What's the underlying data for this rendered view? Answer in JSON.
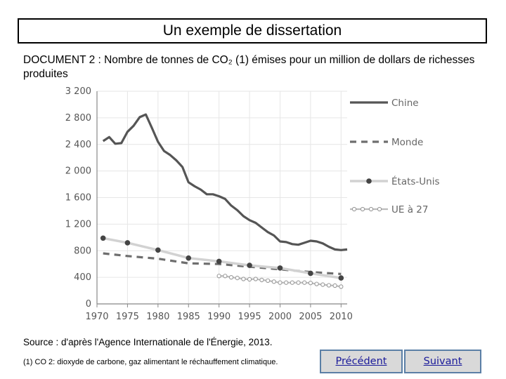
{
  "page": {
    "title": "Un exemple de dissertation",
    "document_title": "DOCUMENT 2 : Nombre de tonnes de CO₂ (1) émises pour un million de dollars de richesses produites",
    "source": "Source : d'après l'Agence Internationale de l'Énergie, 2013.",
    "footnote": "(1) CO 2: dioxyde de carbone, gaz alimentant le réchauffement climatique.",
    "prev_label": "Précédent",
    "next_label": "Suivant"
  },
  "chart_data": {
    "type": "line",
    "xlim": [
      1970,
      2011
    ],
    "ylim": [
      0,
      3200
    ],
    "x_ticks": [
      "1970",
      "1975",
      "1980",
      "1985",
      "1990",
      "1995",
      "2000",
      "2005",
      "2010"
    ],
    "y_ticks": [
      "0",
      "400",
      "800",
      "1 200",
      "1 600",
      "2 000",
      "2 400",
      "2 800",
      "3 200"
    ],
    "grid": true,
    "legend_position": "right",
    "colors": {
      "chine": "#555555",
      "monde": "#6e6e6e",
      "etats_unis": "#d2d2d2",
      "etats_unis_marker": "#444444",
      "ue": "#bcbcbc",
      "grid": "#e6e6e6",
      "axis": "#888888"
    },
    "series": [
      {
        "name": "Chine",
        "style": "solid",
        "x": [
          1971,
          1972,
          1973,
          1974,
          1975,
          1976,
          1977,
          1978,
          1979,
          1980,
          1981,
          1982,
          1983,
          1984,
          1985,
          1986,
          1987,
          1988,
          1989,
          1990,
          1991,
          1992,
          1993,
          1994,
          1995,
          1996,
          1997,
          1998,
          1999,
          2000,
          2001,
          2002,
          2003,
          2004,
          2005,
          2006,
          2007,
          2008,
          2009,
          2010,
          2011
        ],
        "values": [
          2450,
          2510,
          2410,
          2420,
          2590,
          2680,
          2810,
          2850,
          2650,
          2440,
          2300,
          2240,
          2160,
          2060,
          1830,
          1770,
          1720,
          1650,
          1650,
          1620,
          1580,
          1480,
          1410,
          1320,
          1260,
          1220,
          1150,
          1080,
          1030,
          940,
          930,
          900,
          890,
          920,
          950,
          940,
          910,
          860,
          820,
          810,
          820
        ]
      },
      {
        "name": "Monde",
        "style": "dashed",
        "x": [
          1971,
          1975,
          1980,
          1985,
          1990,
          1995,
          2000,
          2005,
          2010
        ],
        "values": [
          760,
          720,
          680,
          610,
          600,
          560,
          520,
          480,
          450
        ]
      },
      {
        "name": "États-Unis",
        "style": "solid-markers",
        "x": [
          1971,
          1975,
          1980,
          1985,
          1990,
          1995,
          2000,
          2005,
          2010
        ],
        "values": [
          990,
          920,
          810,
          690,
          640,
          580,
          540,
          460,
          390
        ]
      },
      {
        "name": "UE à 27",
        "style": "dotted-markers",
        "x": [
          1990,
          1991,
          1992,
          1993,
          1994,
          1995,
          1996,
          1997,
          1998,
          1999,
          2000,
          2001,
          2002,
          2003,
          2004,
          2005,
          2006,
          2007,
          2008,
          2009,
          2010
        ],
        "values": [
          420,
          420,
          400,
          390,
          375,
          370,
          375,
          360,
          350,
          335,
          320,
          320,
          320,
          320,
          320,
          315,
          300,
          290,
          280,
          275,
          260
        ]
      }
    ]
  }
}
